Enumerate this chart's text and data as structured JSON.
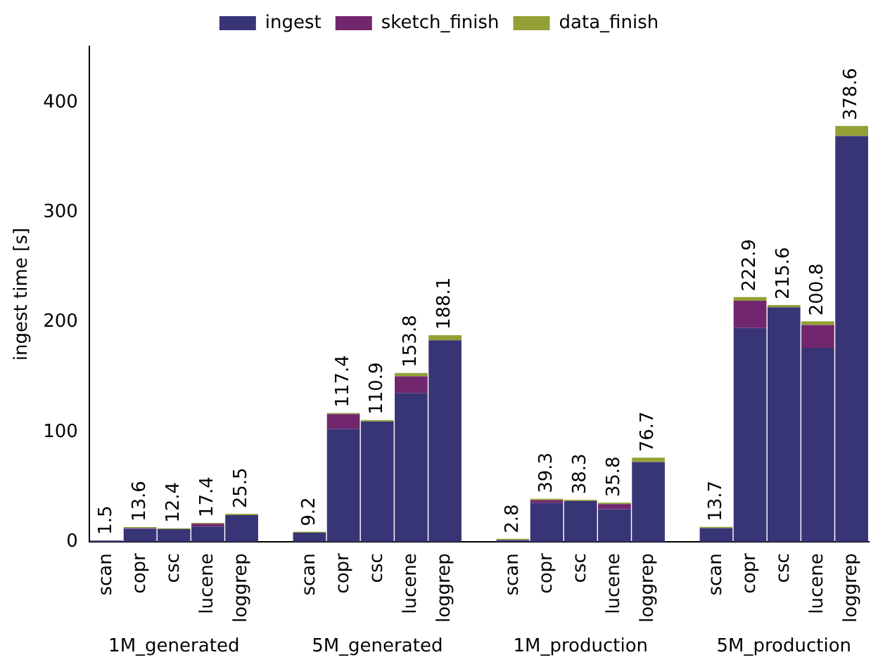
{
  "chart_data": {
    "type": "bar",
    "stacked": true,
    "ylabel": "ingest time [s]",
    "categories": [
      "scan",
      "copr",
      "csc",
      "lucene",
      "loggrep",
      null,
      "scan",
      "copr",
      "csc",
      "lucene",
      "loggrep",
      null,
      "scan",
      "copr",
      "csc",
      "lucene",
      "loggrep",
      null,
      "scan",
      "copr",
      "csc",
      "lucene",
      "loggrep"
    ],
    "series": [
      {
        "name": "ingest",
        "color": "#383576",
        "values": [
          1.2,
          12.0,
          11.6,
          14.0,
          24.5,
          null,
          8.4,
          103.0,
          109.7,
          135.5,
          183.6,
          null,
          1.8,
          35.5,
          37.3,
          29.9,
          72.7,
          null,
          12.7,
          194.8,
          213.6,
          176.6,
          369.5
        ]
      },
      {
        "name": "sketch_finish",
        "color": "#71266e",
        "values": [
          0,
          0.6,
          0,
          2.6,
          0,
          null,
          0,
          13.4,
          0,
          15.2,
          0,
          null,
          0,
          2.6,
          0,
          4.6,
          0,
          null,
          0,
          24.7,
          0,
          20.8,
          0
        ]
      },
      {
        "name": "data_finish",
        "color": "#93a035",
        "values": [
          0.3,
          1.0,
          0.8,
          0.8,
          1.0,
          null,
          0.8,
          1.0,
          1.2,
          3.1,
          4.5,
          null,
          1.0,
          1.2,
          1.0,
          1.3,
          4.0,
          null,
          1.0,
          3.4,
          2.0,
          3.4,
          9.1
        ]
      }
    ],
    "totals": [
      "1.5",
      "13.6",
      "12.4",
      "17.4",
      "25.5",
      null,
      "9.2",
      "117.4",
      "110.9",
      "153.8",
      "188.1",
      null,
      "2.8",
      "39.3",
      "38.3",
      "35.8",
      "76.7",
      null,
      "13.7",
      "222.9",
      "215.6",
      "200.8",
      "378.6"
    ],
    "annotations": [
      "1M_generated",
      "5M_generated",
      "1M_production",
      "5M_production"
    ],
    "ylim": [
      0,
      451
    ],
    "yticks": [
      0,
      100,
      200,
      300,
      400
    ],
    "grid": false,
    "legend": "top"
  }
}
